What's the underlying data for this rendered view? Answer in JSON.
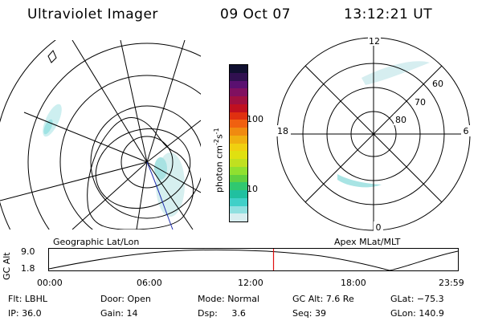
{
  "header": {
    "title": "Ultraviolet Imager",
    "date": "09 Oct 07",
    "time": "13:12:21 UT"
  },
  "colorbar": {
    "label_base": "photon cm",
    "label_exp1": "-2",
    "label_mid": "s",
    "label_exp2": "-1",
    "ticks": [
      "100",
      "10"
    ],
    "colors": [
      "#101030",
      "#301050",
      "#5a1070",
      "#801060",
      "#a01040",
      "#c01020",
      "#e03010",
      "#f06010",
      "#f08a10",
      "#f0b010",
      "#f0d010",
      "#e0e010",
      "#c0e020",
      "#90e030",
      "#60d040",
      "#30c870",
      "#20c0a0",
      "#40d0c8",
      "#90e0e0",
      "#d8eef0"
    ]
  },
  "geo_map": {
    "label": "Geographic Lat/Lon"
  },
  "polar_plot": {
    "label": "Apex MLat/MLT",
    "mlt_labels": {
      "top": "12",
      "left": "18",
      "right": "6",
      "bottom": "0"
    },
    "lat_labels": [
      "60",
      "70",
      "80"
    ]
  },
  "timeline": {
    "ylabel": "GC Alt",
    "ymax": "9.0",
    "ymin": "1.8",
    "ticks": [
      "00:00",
      "06:00",
      "12:00",
      "18:00",
      "23:59"
    ],
    "marker_time_hours": 13.2
  },
  "info": {
    "row1": [
      {
        "label": "Flt:",
        "value": "LBHL"
      },
      {
        "label": "Door:",
        "value": "Open"
      },
      {
        "label": "Mode:",
        "value": "Normal"
      },
      {
        "label": "GC Alt:",
        "value": "7.6 Re"
      },
      {
        "label": "GLat:",
        "value": "−75.3"
      }
    ],
    "row2": [
      {
        "label": "IP:",
        "value": "36.0"
      },
      {
        "label": "Gain:",
        "value": "14"
      },
      {
        "label": "Dsp:",
        "value": "3.6"
      },
      {
        "label": "Seq:",
        "value": "39"
      },
      {
        "label": "GLon:",
        "value": "140.9"
      }
    ]
  }
}
